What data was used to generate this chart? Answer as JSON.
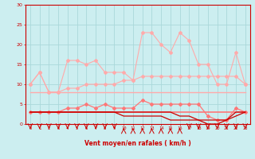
{
  "x": [
    0,
    1,
    2,
    3,
    4,
    5,
    6,
    7,
    8,
    9,
    10,
    11,
    12,
    13,
    14,
    15,
    16,
    17,
    18,
    19,
    20,
    21,
    22,
    23
  ],
  "rafales": [
    10,
    13,
    8,
    8,
    16,
    16,
    15,
    16,
    13,
    13,
    13,
    11,
    23,
    23,
    20,
    18,
    23,
    21,
    15,
    15,
    10,
    10,
    18,
    10
  ],
  "moyen_upper": [
    10,
    13,
    8,
    8,
    9,
    9,
    10,
    10,
    10,
    10,
    11,
    11,
    12,
    12,
    12,
    12,
    12,
    12,
    12,
    12,
    12,
    12,
    12,
    10
  ],
  "moyen_lower": [
    8,
    8,
    8,
    8,
    8,
    8,
    8,
    8,
    8,
    8,
    8,
    8,
    8,
    8,
    8,
    8,
    8,
    8,
    8,
    8,
    8,
    8,
    8,
    8
  ],
  "wind_speed": [
    3,
    3,
    3,
    3,
    4,
    4,
    5,
    4,
    5,
    4,
    4,
    4,
    6,
    5,
    5,
    5,
    5,
    5,
    5,
    2,
    1,
    1,
    4,
    3
  ],
  "wind_dir_line": [
    3,
    3,
    3,
    3,
    3,
    3,
    3,
    3,
    3,
    3,
    3,
    3,
    3,
    3,
    3,
    3,
    3,
    3,
    3,
    3,
    3,
    3,
    3,
    3
  ],
  "dark_line1": [
    3,
    3,
    3,
    3,
    3,
    3,
    3,
    3,
    3,
    3,
    2,
    2,
    2,
    2,
    2,
    1,
    1,
    1,
    1,
    1,
    1,
    1,
    2,
    3
  ],
  "dark_line2": [
    3,
    3,
    3,
    3,
    3,
    3,
    3,
    3,
    3,
    3,
    3,
    3,
    3,
    3,
    3,
    3,
    2,
    2,
    1,
    0,
    0,
    1,
    3,
    3
  ],
  "bg_color": "#cceef0",
  "grid_color": "#aad8da",
  "line_color_light": "#ffaaaa",
  "line_color_medium": "#ff7777",
  "line_color_dark": "#cc0000",
  "xlabel": "Vent moyen/en rafales ( km/h )",
  "ylim": [
    0,
    30
  ],
  "yticks": [
    0,
    5,
    10,
    15,
    20,
    25,
    30
  ],
  "arrow_directions": [
    0,
    0,
    0,
    0,
    0,
    0,
    0,
    0,
    0,
    0,
    1,
    1,
    1,
    1,
    1,
    1,
    1,
    0,
    0,
    0,
    0,
    0,
    0,
    0
  ]
}
